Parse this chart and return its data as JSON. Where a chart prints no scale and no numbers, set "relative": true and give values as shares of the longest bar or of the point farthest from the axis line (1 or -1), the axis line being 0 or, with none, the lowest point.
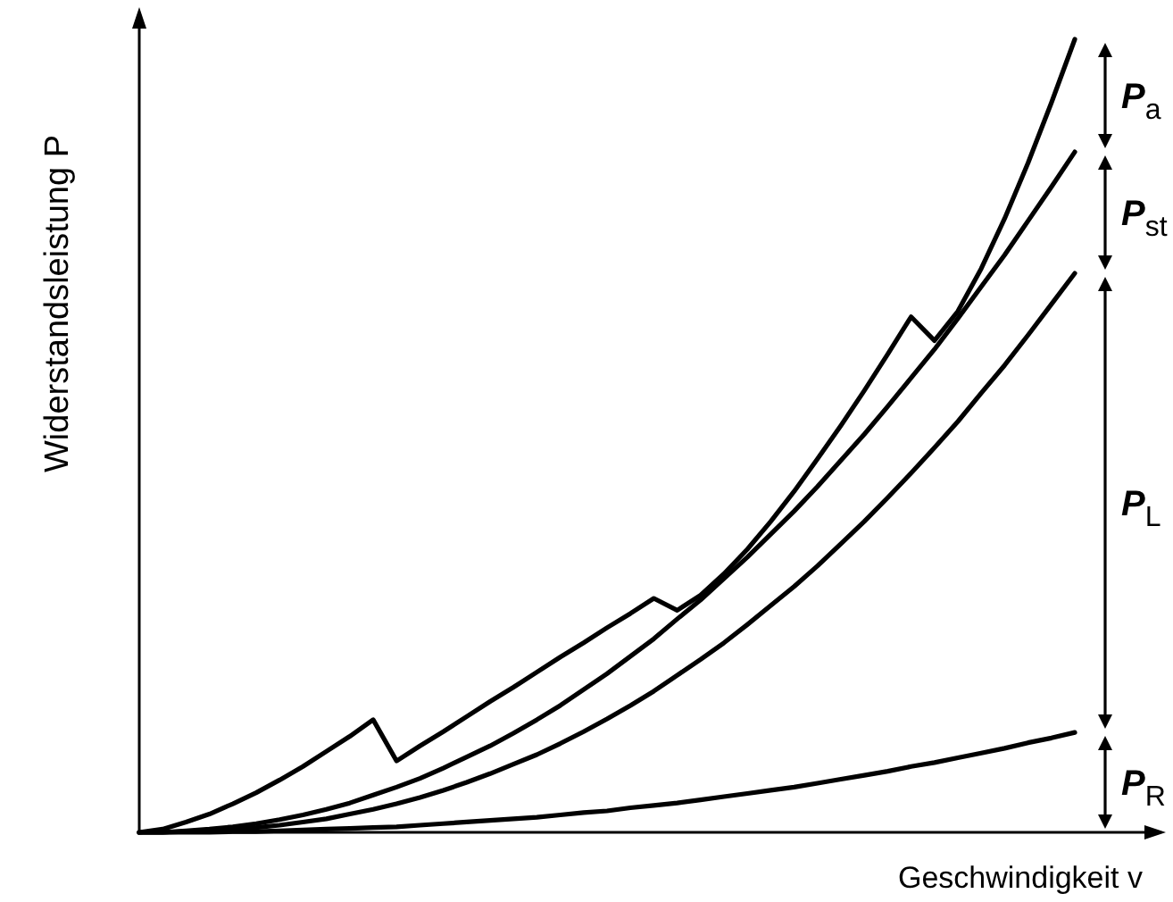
{
  "chart_data": {
    "type": "line",
    "relative": true,
    "xlabel": "Geschwindigkeit v",
    "ylabel": "Widerstandsleistung P",
    "categories": [
      null,
      null,
      null,
      null,
      null,
      null,
      null,
      null,
      null,
      null,
      null,
      null,
      null,
      null,
      null,
      null,
      null,
      null,
      null,
      null,
      null,
      null,
      null,
      null,
      null,
      null,
      null,
      null,
      null,
      null,
      null,
      null,
      null,
      null,
      null,
      null,
      null,
      null,
      null,
      null,
      null
    ],
    "series": [
      {
        "color": "#000000",
        "values": [
          0,
          0,
          0,
          0,
          0.001,
          0.001,
          0.002,
          0.003,
          0.004,
          0.005,
          0.006,
          0.007,
          0.009,
          0.011,
          0.013,
          0.015,
          0.017,
          0.019,
          0.022,
          0.025,
          0.027,
          0.031,
          0.034,
          0.037,
          0.041,
          0.045,
          0.049,
          0.053,
          0.057,
          0.062,
          0.067,
          0.072,
          0.077,
          0.083,
          0.088,
          0.094,
          0.1,
          0.106,
          0.113,
          0.119,
          0.126
        ]
      },
      {
        "color": "#000000",
        "values": [
          0,
          0,
          0.001,
          0.002,
          0.004,
          0.006,
          0.009,
          0.013,
          0.017,
          0.023,
          0.029,
          0.036,
          0.044,
          0.053,
          0.063,
          0.074,
          0.086,
          0.098,
          0.112,
          0.127,
          0.143,
          0.16,
          0.178,
          0.198,
          0.218,
          0.239,
          0.262,
          0.286,
          0.31,
          0.336,
          0.364,
          0.392,
          0.422,
          0.453,
          0.485,
          0.518,
          0.554,
          0.589,
          0.627,
          0.666,
          0.705
        ]
      },
      {
        "color": "#000000",
        "values": [
          0,
          0,
          0.002,
          0.004,
          0.007,
          0.011,
          0.016,
          0.022,
          0.029,
          0.037,
          0.047,
          0.057,
          0.068,
          0.081,
          0.095,
          0.109,
          0.125,
          0.142,
          0.16,
          0.18,
          0.2,
          0.222,
          0.244,
          0.269,
          0.293,
          0.32,
          0.347,
          0.376,
          0.405,
          0.436,
          0.469,
          0.502,
          0.537,
          0.573,
          0.609,
          0.648,
          0.688,
          0.728,
          0.771,
          0.814,
          0.858
        ]
      },
      {
        "color": "#000000",
        "values": [
          0,
          0.004,
          0.013,
          0.023,
          0.036,
          0.05,
          0.066,
          0.083,
          0.102,
          0.121,
          0.142,
          0.09,
          0.109,
          0.127,
          0.146,
          0.165,
          0.183,
          0.202,
          0.221,
          0.239,
          0.258,
          0.276,
          0.295,
          0.28,
          0.299,
          0.326,
          0.357,
          0.392,
          0.43,
          0.471,
          0.513,
          0.557,
          0.603,
          0.65,
          0.62,
          0.657,
          0.711,
          0.774,
          0.844,
          0.92,
          1
        ]
      }
    ],
    "annotations": [
      "P$_{R}$",
      "P$_{L}$",
      "P$_{st}$",
      "P$_{a}$"
    ],
    "line_style": "solid",
    "marker": "none"
  }
}
